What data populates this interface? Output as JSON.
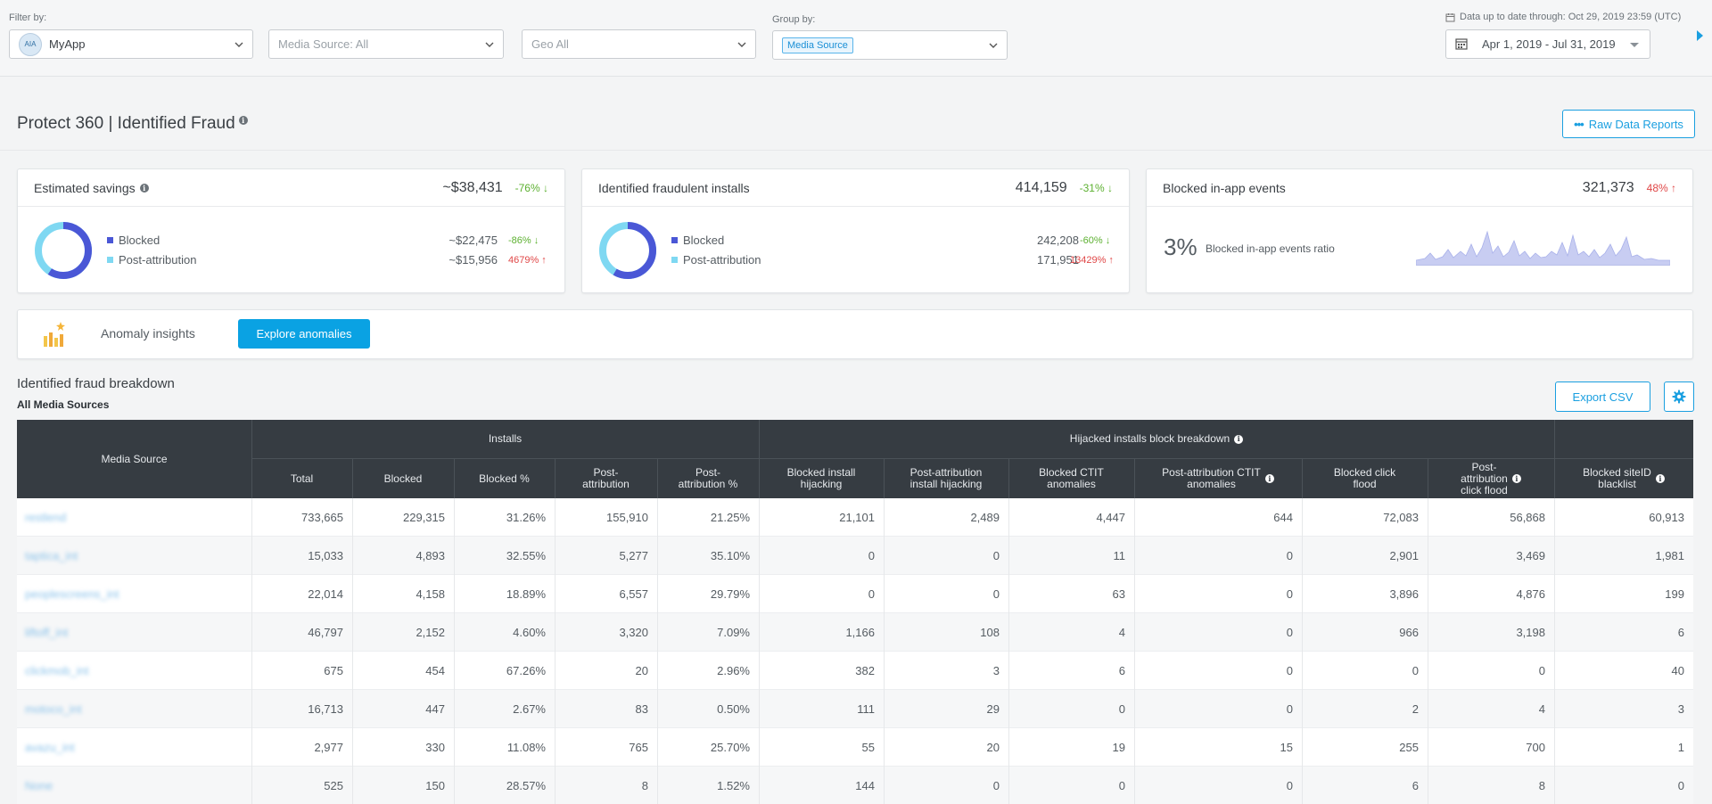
{
  "filters": {
    "filter_by_label": "Filter by:",
    "app": "MyApp",
    "app_logo_text": "AIA",
    "media_source": "Media Source: All",
    "geo": "Geo All",
    "group_by_label": "Group by:",
    "group_by_chip": "Media Source",
    "date_note": "Data up to date through: Oct 29, 2019 23:59 (UTC)",
    "date_range": "Apr 1, 2019 - Jul 31, 2019"
  },
  "page": {
    "title": "Protect 360 | Identified Fraud",
    "raw_data_button": "Raw Data Reports"
  },
  "cards": {
    "savings": {
      "title": "Estimated savings",
      "value": "~$38,431",
      "change": "-76% ↓",
      "blocked_fraction": 0.59,
      "rows": [
        {
          "label": "Blocked",
          "value": "~$22,475",
          "change": "-86% ↓"
        },
        {
          "label": "Post-attribution",
          "value": "~$15,956",
          "change": "4679% ↑"
        }
      ]
    },
    "installs": {
      "title": "Identified fraudulent installs",
      "value": "414,159",
      "change": "-31% ↓",
      "blocked_fraction": 0.585,
      "rows": [
        {
          "label": "Blocked",
          "value": "242,208",
          "change": "-60% ↓"
        },
        {
          "label": "Post-attribution",
          "value": "171,951",
          "change": "13429% ↑"
        }
      ]
    },
    "events": {
      "title": "Blocked in-app events",
      "value": "321,373",
      "change": "48% ↑",
      "ratio": "3%",
      "ratio_label": "Blocked in-app events ratio"
    }
  },
  "colors": {
    "blocked": "#4a57d6",
    "post_attribution": "#7fd8f2",
    "accent": "#0aa2e3",
    "header_bg": "#363c42"
  },
  "anomaly": {
    "label": "Anomaly insights",
    "button": "Explore anomalies"
  },
  "breakdown": {
    "title": "Identified fraud breakdown",
    "subtitle": "All Media Sources",
    "export_button": "Export CSV"
  },
  "table": {
    "group_installs": "Installs",
    "group_hijacked": "Hijacked installs block breakdown",
    "col_source": "Media Source",
    "columns": [
      "Total",
      "Blocked",
      "Blocked %",
      "Post-\nattribution",
      "Post-\nattribution %",
      "Blocked install\nhijacking",
      "Post-attribution\ninstall hijacking",
      "Blocked CTIT\nanomalies",
      "Post-attribution CTIT\nanomalies",
      "Blocked click\nflood",
      "Post-\nattribution\nclick flood",
      "Blocked siteID\nblacklist"
    ],
    "rows": [
      {
        "source": "restlend",
        "cells": [
          "733,665",
          "229,315",
          "31.26%",
          "155,910",
          "21.25%",
          "21,101",
          "2,489",
          "4,447",
          "644",
          "72,083",
          "56,868",
          "60,913"
        ]
      },
      {
        "source": "taptica_int",
        "cells": [
          "15,033",
          "4,893",
          "32.55%",
          "5,277",
          "35.10%",
          "0",
          "0",
          "11",
          "0",
          "2,901",
          "3,469",
          "1,981"
        ]
      },
      {
        "source": "peoplescreens_int",
        "cells": [
          "22,014",
          "4,158",
          "18.89%",
          "6,557",
          "29.79%",
          "0",
          "0",
          "63",
          "0",
          "3,896",
          "4,876",
          "199"
        ]
      },
      {
        "source": "liftoff_int",
        "cells": [
          "46,797",
          "2,152",
          "4.60%",
          "3,320",
          "7.09%",
          "1,166",
          "108",
          "4",
          "0",
          "966",
          "3,198",
          "6"
        ]
      },
      {
        "source": "clickmob_int",
        "cells": [
          "675",
          "454",
          "67.26%",
          "20",
          "2.96%",
          "382",
          "3",
          "6",
          "0",
          "0",
          "0",
          "40"
        ]
      },
      {
        "source": "motoco_int",
        "cells": [
          "16,713",
          "447",
          "2.67%",
          "83",
          "0.50%",
          "111",
          "29",
          "0",
          "0",
          "2",
          "4",
          "3"
        ]
      },
      {
        "source": "avazu_int",
        "cells": [
          "2,977",
          "330",
          "11.08%",
          "765",
          "25.70%",
          "55",
          "20",
          "19",
          "15",
          "255",
          "700",
          "1"
        ]
      },
      {
        "source": "None",
        "cells": [
          "525",
          "150",
          "28.57%",
          "8",
          "1.52%",
          "144",
          "0",
          "0",
          "0",
          "6",
          "8",
          "0"
        ]
      }
    ]
  }
}
